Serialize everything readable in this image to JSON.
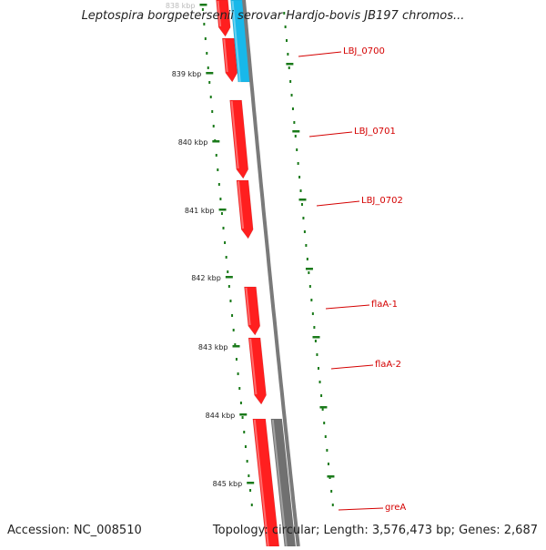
{
  "map": {
    "title": "Leptospira borgpetersenii serovar Hardjo-bovis JB197 chromos...",
    "accession": "Accession: NC_008510",
    "summary": "Topology: circular; Length: 3,576,473 bp; Genes: 2,687"
  },
  "ruler": {
    "ticks": [
      "838 kbp",
      "839 kbp",
      "840 kbp",
      "841 kbp",
      "842 kbp",
      "843 kbp",
      "844 kbp",
      "845 kbp"
    ]
  },
  "genes": [
    {
      "label": "LBJ_0700"
    },
    {
      "label": "LBJ_0701"
    },
    {
      "label": "LBJ_0702"
    },
    {
      "label": "flaA-1"
    },
    {
      "label": "flaA-2"
    },
    {
      "label": "greA"
    }
  ],
  "colors": {
    "gene_forward": "#ff1f1f",
    "gene_reverse": "#18b8ea",
    "gene_other": "#707070",
    "ruler": "#1a7a1a",
    "label": "#d40000",
    "backbone": "#7a7a7a"
  }
}
